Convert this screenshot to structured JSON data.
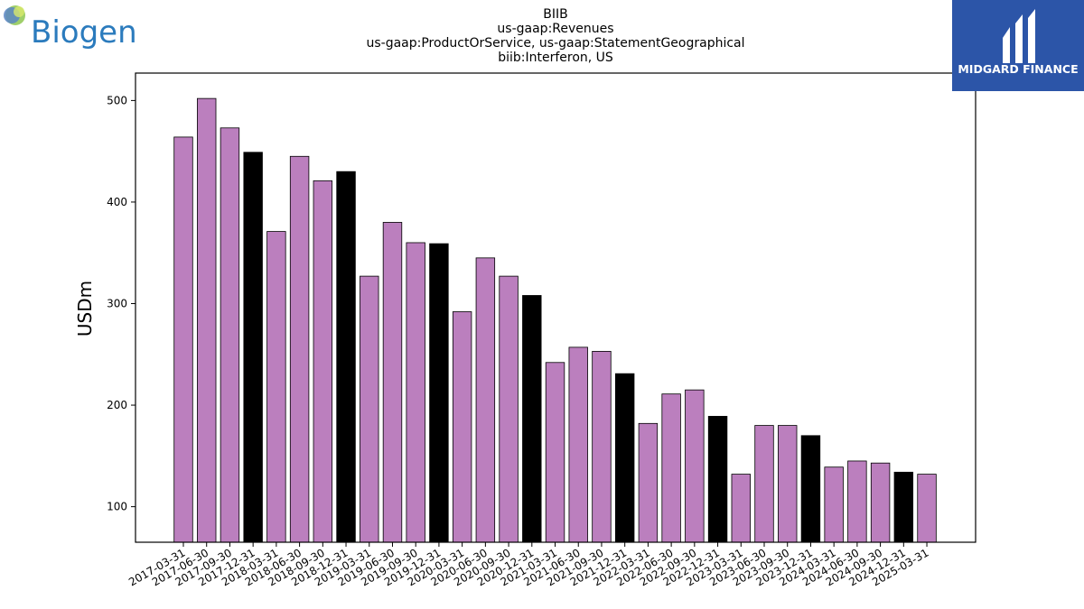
{
  "company_logo": {
    "text": "Biogen",
    "color": "#2b7bbd"
  },
  "brand_badge": {
    "text": "MIDGARD FINANCE",
    "background": "#2c55a8"
  },
  "colors": {
    "bar_default": "#bb7fbe",
    "bar_q4": "#000000",
    "bar_edge": "#000000"
  },
  "chart_data": {
    "type": "bar",
    "title_lines": [
      "BIIB",
      "us-gaap:Revenues",
      "us-gaap:ProductOrService, us-gaap:StatementGeographical",
      "biib:Interferon, US"
    ],
    "xlabel": "",
    "ylabel": "USDm",
    "ylim": [
      65,
      527
    ],
    "yticks": [
      100,
      200,
      300,
      400,
      500
    ],
    "grid": false,
    "categories": [
      "2017-03-31",
      "2017-06-30",
      "2017-09-30",
      "2017-12-31",
      "2018-03-31",
      "2018-06-30",
      "2018-09-30",
      "2018-12-31",
      "2019-03-31",
      "2019-06-30",
      "2019-09-30",
      "2019-12-31",
      "2020-03-31",
      "2020-06-30",
      "2020-09-30",
      "2020-12-31",
      "2021-03-31",
      "2021-06-30",
      "2021-09-30",
      "2021-12-31",
      "2022-03-31",
      "2022-06-30",
      "2022-09-30",
      "2022-12-31",
      "2023-03-31",
      "2023-06-30",
      "2023-09-30",
      "2023-12-31",
      "2024-03-31",
      "2024-06-30",
      "2024-09-30",
      "2024-12-31",
      "2025-03-31"
    ],
    "values": [
      464,
      502,
      473,
      449,
      371,
      445,
      421,
      430,
      327,
      380,
      360,
      359,
      292,
      345,
      327,
      308,
      242,
      257,
      253,
      231,
      182,
      211,
      215,
      189,
      132,
      180,
      180,
      170,
      139,
      145,
      143,
      134,
      132
    ]
  }
}
